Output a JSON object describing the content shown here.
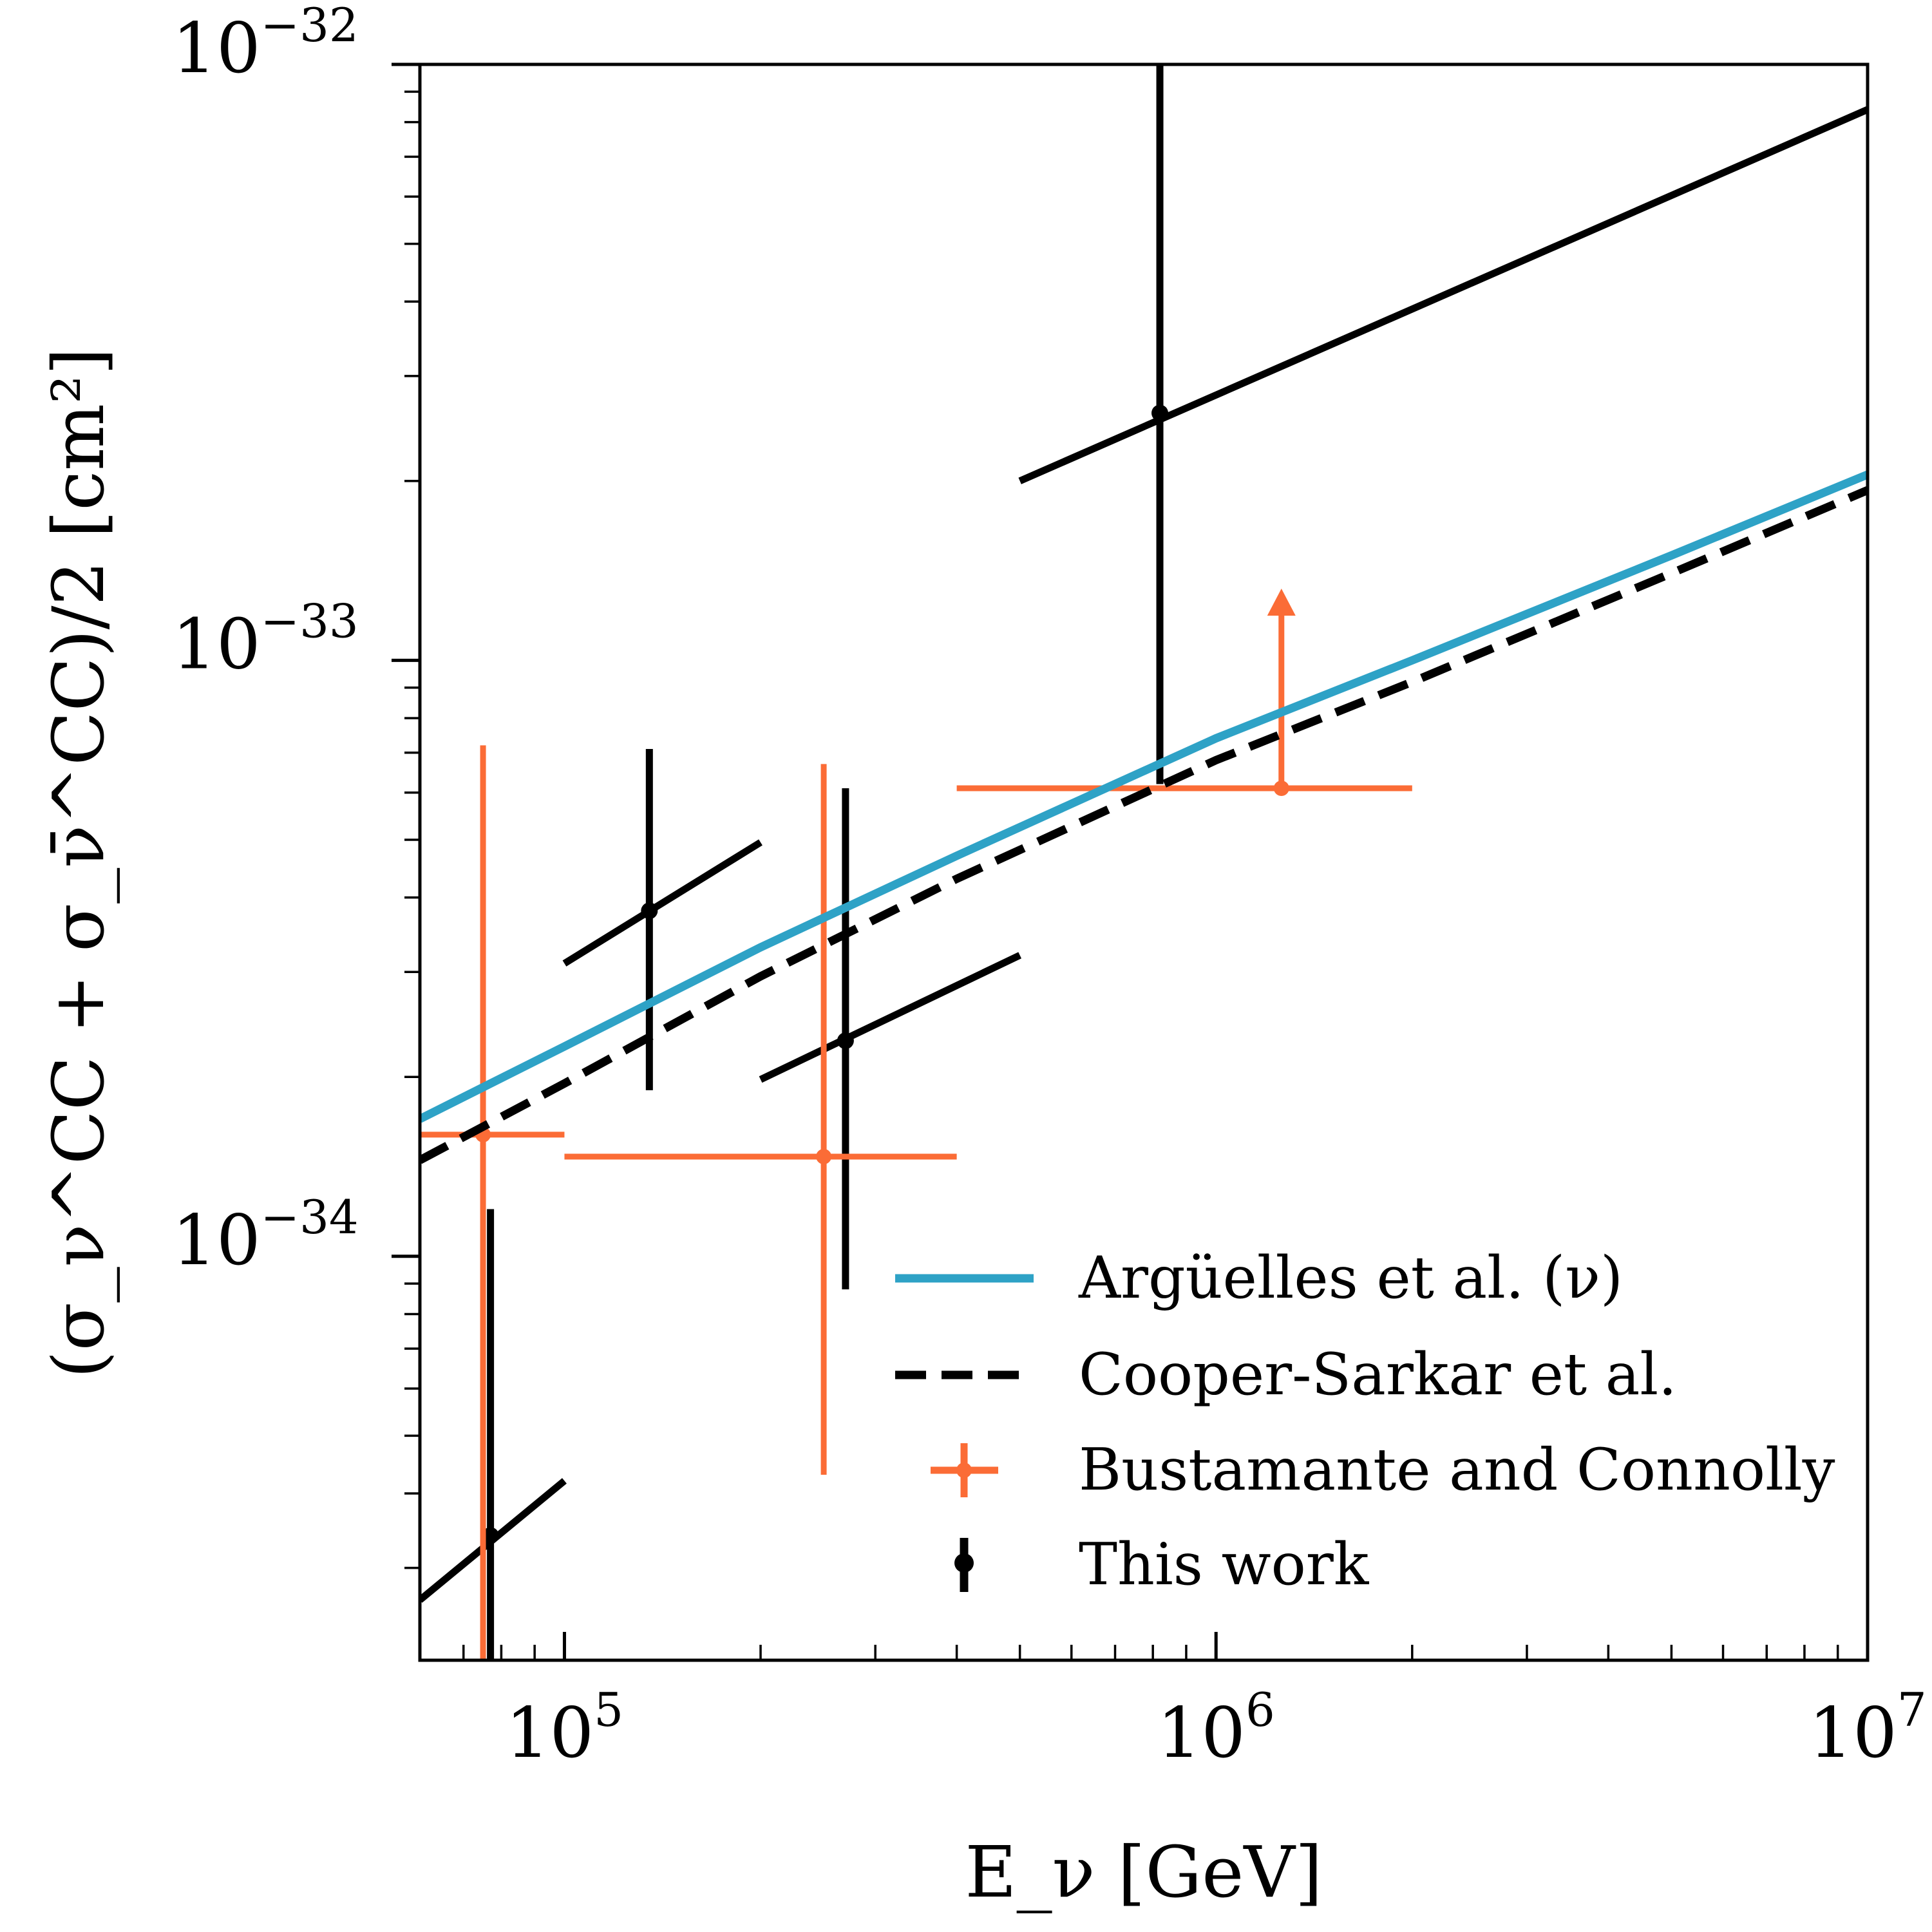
{
  "chart_data": {
    "type": "scatter",
    "xlabel": "E_ν [GeV]",
    "ylabel": "(σ_ν^CC + σ_ν̄^CC)/2 [cm²]",
    "xscale": "log",
    "yscale": "log",
    "xlim": [
      60000,
      10000000
    ],
    "ylim": [
      2.1e-35,
      1e-32
    ],
    "x_ticks": [
      {
        "value": 100000,
        "label": "10",
        "exp": "5"
      },
      {
        "value": 1000000,
        "label": "10",
        "exp": "6"
      },
      {
        "value": 10000000,
        "label": "10",
        "exp": "7"
      }
    ],
    "y_ticks": [
      {
        "value": 1e-34,
        "label": "10",
        "exp": "−34"
      },
      {
        "value": 1e-33,
        "label": "10",
        "exp": "−33"
      },
      {
        "value": 1e-32,
        "label": "10",
        "exp": "−32"
      }
    ],
    "grid": false,
    "legend_position": "bottom-right",
    "series": [
      {
        "name": "Argüelles et al. (ν)",
        "kind": "line",
        "color": "#2ea2c6",
        "style": "solid",
        "x": [
          60000,
          100000,
          200000,
          400000,
          1000000,
          2000000,
          5000000,
          10000000
        ],
        "y": [
          1.7e-34,
          2.25e-34,
          3.3e-34,
          4.7e-34,
          7.4e-34,
          1e-33,
          1.5e-33,
          2.05e-33
        ]
      },
      {
        "name": "Cooper-Sarkar et al.",
        "kind": "line",
        "color": "#000000",
        "style": "dashed",
        "x": [
          60000,
          100000,
          200000,
          400000,
          1000000,
          2000000,
          5000000,
          10000000
        ],
        "y": [
          1.45e-34,
          1.95e-34,
          2.95e-34,
          4.3e-34,
          6.8e-34,
          9.2e-34,
          1.4e-33,
          1.93e-33
        ]
      },
      {
        "name": "Bustamante and Connolly",
        "kind": "errorbar",
        "color": "#fb6c36",
        "points": [
          {
            "x": 75000,
            "y": 1.6e-34,
            "xlo": 60000,
            "xhi": 100000,
            "ylo": 2.1e-35,
            "yhi": 7.2e-34,
            "lower_limit": false
          },
          {
            "x": 250000,
            "y": 1.47e-34,
            "xlo": 100000,
            "xhi": 400000,
            "ylo": 4.3e-35,
            "yhi": 6.7e-34,
            "lower_limit": false
          },
          {
            "x": 1260000,
            "y": 6.1e-34,
            "xlo": 400000,
            "xhi": 2000000,
            "ylo": 6.1e-34,
            "yhi": 1.3e-33,
            "lower_limit": true
          }
        ]
      },
      {
        "name": "This work",
        "kind": "errorbar",
        "color": "#000000",
        "points": [
          {
            "x": 77000,
            "y": 3.4e-35,
            "ylo": 2.1e-35,
            "yhi": 1.2e-34,
            "slope_x": [
              60000,
              100000
            ],
            "slope_y": [
              2.65e-35,
              4.2e-35
            ]
          },
          {
            "x": 135000,
            "y": 3.8e-34,
            "ylo": 1.9e-34,
            "yhi": 7.1e-34,
            "slope_x": [
              100000,
              200000
            ],
            "slope_y": [
              3.1e-34,
              4.95e-34
            ]
          },
          {
            "x": 270000,
            "y": 2.3e-34,
            "ylo": 8.8e-35,
            "yhi": 6.1e-34,
            "slope_x": [
              200000,
              500000
            ],
            "slope_y": [
              1.98e-34,
              3.2e-34
            ]
          },
          {
            "x": 820000,
            "y": 2.6e-33,
            "ylo": 6.2e-34,
            "yhi": 1e-32,
            "slope_x": [
              500000,
              10000000
            ],
            "slope_y": [
              2e-33,
              8.4e-33
            ]
          }
        ]
      }
    ]
  }
}
